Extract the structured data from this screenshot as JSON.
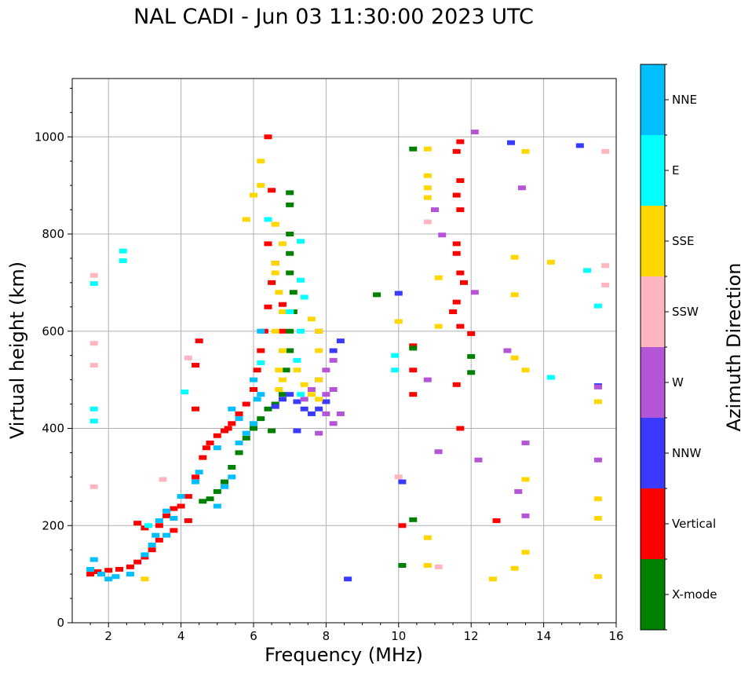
{
  "chart_data": {
    "type": "scatter",
    "title": "NAL CADI - Jun 03 11:30:00 2023 UTC",
    "xlabel": "Frequency (MHz)",
    "ylabel": "Virtual height (km)",
    "xlim": [
      1,
      16
    ],
    "ylim": [
      0,
      1120
    ],
    "xticks": [
      "2",
      "4",
      "6",
      "8",
      "10",
      "12",
      "14",
      "16"
    ],
    "yticks": [
      "0",
      "200",
      "400",
      "600",
      "800",
      "1000"
    ],
    "grid": true,
    "colorbar": {
      "label": "Azimuth Direction",
      "categories": [
        "X-mode",
        "Vertical",
        "NNW",
        "W",
        "SSW",
        "SSE",
        "E",
        "NNE"
      ],
      "colors": {
        "X-mode": "#008000",
        "Vertical": "#ff0000",
        "NNW": "#3a3aff",
        "W": "#b455d6",
        "SSW": "#ffb6c1",
        "SSE": "#ffd700",
        "E": "#00ffff",
        "NNE": "#00bfff"
      }
    },
    "series": [
      {
        "name": "Vertical",
        "points": [
          [
            1.5,
            100
          ],
          [
            1.7,
            105
          ],
          [
            2.0,
            108
          ],
          [
            2.3,
            110
          ],
          [
            2.6,
            115
          ],
          [
            2.8,
            125
          ],
          [
            3.0,
            135
          ],
          [
            3.2,
            150
          ],
          [
            3.4,
            200
          ],
          [
            3.6,
            220
          ],
          [
            3.8,
            235
          ],
          [
            4.0,
            240
          ],
          [
            4.2,
            260
          ],
          [
            4.4,
            300
          ],
          [
            4.6,
            340
          ],
          [
            4.8,
            370
          ],
          [
            5.0,
            385
          ],
          [
            5.2,
            395
          ],
          [
            5.4,
            410
          ],
          [
            5.6,
            430
          ],
          [
            5.8,
            450
          ],
          [
            6.0,
            480
          ],
          [
            6.1,
            520
          ],
          [
            6.2,
            560
          ],
          [
            6.3,
            600
          ],
          [
            6.4,
            650
          ],
          [
            6.5,
            700
          ],
          [
            6.6,
            740
          ],
          [
            6.4,
            780
          ],
          [
            6.5,
            890
          ],
          [
            6.4,
            1000
          ],
          [
            2.8,
            205
          ],
          [
            3.0,
            195
          ],
          [
            3.4,
            170
          ],
          [
            3.8,
            190
          ],
          [
            4.2,
            210
          ],
          [
            4.4,
            440
          ],
          [
            4.5,
            580
          ],
          [
            4.4,
            530
          ],
          [
            4.7,
            360
          ],
          [
            5.3,
            400
          ],
          [
            6.8,
            655
          ],
          [
            6.8,
            600
          ],
          [
            11.5,
            640
          ],
          [
            11.6,
            660
          ],
          [
            11.7,
            610
          ],
          [
            11.8,
            700
          ],
          [
            11.6,
            780
          ],
          [
            11.7,
            990
          ],
          [
            11.6,
            970
          ],
          [
            11.7,
            910
          ],
          [
            11.6,
            880
          ],
          [
            11.7,
            850
          ],
          [
            11.6,
            760
          ],
          [
            11.7,
            720
          ],
          [
            11.6,
            490
          ],
          [
            11.7,
            400
          ],
          [
            12.0,
            595
          ],
          [
            12.7,
            210
          ],
          [
            10.4,
            570
          ],
          [
            10.4,
            520
          ],
          [
            10.4,
            470
          ],
          [
            10.1,
            200
          ]
        ]
      },
      {
        "name": "X-mode",
        "points": [
          [
            4.6,
            250
          ],
          [
            4.8,
            255
          ],
          [
            5.0,
            270
          ],
          [
            5.2,
            290
          ],
          [
            5.4,
            320
          ],
          [
            5.6,
            350
          ],
          [
            5.8,
            380
          ],
          [
            6.0,
            400
          ],
          [
            6.2,
            420
          ],
          [
            6.4,
            440
          ],
          [
            6.6,
            450
          ],
          [
            6.8,
            470
          ],
          [
            6.9,
            520
          ],
          [
            7.0,
            560
          ],
          [
            7.0,
            600
          ],
          [
            7.1,
            640
          ],
          [
            7.1,
            680
          ],
          [
            7.0,
            720
          ],
          [
            7.0,
            760
          ],
          [
            7.0,
            800
          ],
          [
            7.0,
            860
          ],
          [
            7.0,
            885
          ],
          [
            6.5,
            395
          ],
          [
            9.4,
            675
          ],
          [
            10.4,
            975
          ],
          [
            10.4,
            565
          ],
          [
            10.1,
            118
          ],
          [
            10.4,
            212
          ],
          [
            12.0,
            548
          ],
          [
            12.0,
            515
          ]
        ]
      },
      {
        "name": "NNW",
        "points": [
          [
            6.6,
            445
          ],
          [
            6.8,
            460
          ],
          [
            7.0,
            470
          ],
          [
            7.2,
            455
          ],
          [
            7.4,
            440
          ],
          [
            7.6,
            430
          ],
          [
            7.8,
            440
          ],
          [
            8.0,
            455
          ],
          [
            8.2,
            560
          ],
          [
            8.4,
            580
          ],
          [
            7.2,
            395
          ],
          [
            10.0,
            678
          ],
          [
            10.1,
            290
          ],
          [
            8.6,
            90
          ],
          [
            15.0,
            982
          ],
          [
            15.5,
            488
          ],
          [
            13.1,
            988
          ]
        ]
      },
      {
        "name": "W",
        "points": [
          [
            7.4,
            460
          ],
          [
            7.6,
            480
          ],
          [
            7.8,
            500
          ],
          [
            8.0,
            520
          ],
          [
            8.2,
            540
          ],
          [
            8.0,
            430
          ],
          [
            8.2,
            410
          ],
          [
            8.4,
            430
          ],
          [
            7.8,
            390
          ],
          [
            8.2,
            480
          ],
          [
            8.0,
            470
          ],
          [
            7.8,
            600
          ],
          [
            10.8,
            500
          ],
          [
            11.0,
            850
          ],
          [
            11.2,
            798
          ],
          [
            12.1,
            1010
          ],
          [
            12.1,
            680
          ],
          [
            12.2,
            335
          ],
          [
            13.0,
            560
          ],
          [
            13.3,
            270
          ],
          [
            13.4,
            895
          ],
          [
            13.5,
            370
          ],
          [
            13.5,
            220
          ],
          [
            15.5,
            335
          ],
          [
            15.5,
            485
          ],
          [
            11.1,
            352
          ]
        ]
      },
      {
        "name": "SSW",
        "points": [
          [
            1.6,
            715
          ],
          [
            1.6,
            575
          ],
          [
            1.6,
            530
          ],
          [
            1.6,
            280
          ],
          [
            3.5,
            295
          ],
          [
            4.2,
            545
          ],
          [
            6.6,
            820
          ],
          [
            10.0,
            300
          ],
          [
            10.8,
            825
          ],
          [
            11.1,
            115
          ],
          [
            15.7,
            970
          ],
          [
            15.7,
            735
          ],
          [
            15.7,
            695
          ]
        ]
      },
      {
        "name": "SSE",
        "points": [
          [
            5.8,
            830
          ],
          [
            6.0,
            880
          ],
          [
            6.2,
            900
          ],
          [
            6.2,
            950
          ],
          [
            6.6,
            740
          ],
          [
            6.6,
            720
          ],
          [
            6.7,
            680
          ],
          [
            6.8,
            640
          ],
          [
            6.6,
            600
          ],
          [
            6.8,
            560
          ],
          [
            6.7,
            520
          ],
          [
            6.7,
            480
          ],
          [
            6.8,
            500
          ],
          [
            7.2,
            520
          ],
          [
            7.4,
            490
          ],
          [
            7.6,
            470
          ],
          [
            7.8,
            500
          ],
          [
            7.8,
            560
          ],
          [
            7.8,
            600
          ],
          [
            7.6,
            625
          ],
          [
            7.8,
            460
          ],
          [
            6.8,
            780
          ],
          [
            6.6,
            820
          ],
          [
            3.0,
            90
          ],
          [
            10.0,
            620
          ],
          [
            10.8,
            975
          ],
          [
            10.8,
            920
          ],
          [
            10.8,
            895
          ],
          [
            10.8,
            875
          ],
          [
            11.1,
            610
          ],
          [
            11.1,
            710
          ],
          [
            10.8,
            175
          ],
          [
            10.8,
            118
          ],
          [
            13.2,
            752
          ],
          [
            13.2,
            675
          ],
          [
            13.2,
            545
          ],
          [
            13.5,
            520
          ],
          [
            13.5,
            970
          ],
          [
            13.5,
            295
          ],
          [
            13.5,
            145
          ],
          [
            13.2,
            112
          ],
          [
            12.6,
            90
          ],
          [
            14.2,
            742
          ],
          [
            15.5,
            455
          ],
          [
            15.5,
            255
          ],
          [
            15.5,
            215
          ],
          [
            15.5,
            95
          ]
        ]
      },
      {
        "name": "E",
        "points": [
          [
            1.6,
            698
          ],
          [
            1.6,
            440
          ],
          [
            1.6,
            415
          ],
          [
            2.4,
            765
          ],
          [
            2.4,
            745
          ],
          [
            3.1,
            200
          ],
          [
            4.1,
            475
          ],
          [
            6.2,
            535
          ],
          [
            7.0,
            640
          ],
          [
            7.3,
            785
          ],
          [
            7.3,
            705
          ],
          [
            7.4,
            670
          ],
          [
            7.3,
            600
          ],
          [
            7.2,
            540
          ],
          [
            7.3,
            470
          ],
          [
            6.4,
            830
          ],
          [
            9.9,
            550
          ],
          [
            9.9,
            520
          ],
          [
            15.5,
            652
          ],
          [
            15.2,
            725
          ],
          [
            14.2,
            505
          ]
        ]
      },
      {
        "name": "NNE",
        "points": [
          [
            1.5,
            110
          ],
          [
            1.6,
            130
          ],
          [
            1.8,
            100
          ],
          [
            2.2,
            95
          ],
          [
            2.6,
            100
          ],
          [
            3.0,
            140
          ],
          [
            3.2,
            160
          ],
          [
            3.3,
            180
          ],
          [
            3.4,
            210
          ],
          [
            3.6,
            230
          ],
          [
            3.8,
            215
          ],
          [
            4.0,
            260
          ],
          [
            4.4,
            290
          ],
          [
            4.5,
            310
          ],
          [
            5.0,
            240
          ],
          [
            5.2,
            280
          ],
          [
            5.4,
            300
          ],
          [
            5.6,
            370
          ],
          [
            5.8,
            390
          ],
          [
            6.0,
            410
          ],
          [
            6.1,
            460
          ],
          [
            6.0,
            500
          ],
          [
            5.4,
            440
          ],
          [
            5.6,
            420
          ],
          [
            5.0,
            360
          ],
          [
            3.6,
            180
          ],
          [
            6.2,
            600
          ],
          [
            6.2,
            470
          ],
          [
            2.0,
            90
          ]
        ]
      }
    ]
  }
}
